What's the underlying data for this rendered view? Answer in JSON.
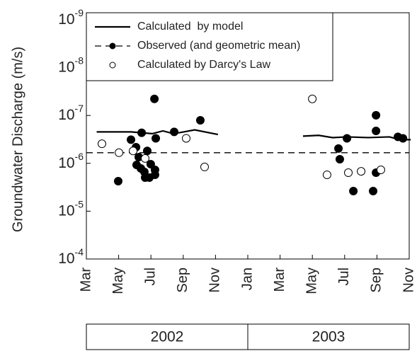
{
  "chart_data": {
    "type": "scatter",
    "y_label": "Groundwater Discharge (m/s)",
    "log_y": true,
    "ylim": [
      0.0001,
      1e-09
    ],
    "yticks": [
      {
        "value": 1e-09,
        "label": "10^-9"
      },
      {
        "value": 1e-08,
        "label": "10^-8"
      },
      {
        "value": 1e-07,
        "label": "10^-7"
      },
      {
        "value": 1e-06,
        "label": "10^-6"
      },
      {
        "value": 1e-05,
        "label": "10^-5"
      },
      {
        "value": 0.0001,
        "label": "10^-4"
      }
    ],
    "xlim": [
      2002.1667,
      2003.8333
    ],
    "xticks": [
      {
        "value": 2002.1667,
        "label": "Mar"
      },
      {
        "value": 2002.3333,
        "label": "May"
      },
      {
        "value": 2002.5,
        "label": "Jul"
      },
      {
        "value": 2002.6667,
        "label": "Sep"
      },
      {
        "value": 2002.8333,
        "label": "Nov"
      },
      {
        "value": 2003.0,
        "label": "Jan"
      },
      {
        "value": 2003.1667,
        "label": "Mar"
      },
      {
        "value": 2003.3333,
        "label": "May"
      },
      {
        "value": 2003.5,
        "label": "Jul"
      },
      {
        "value": 2003.6667,
        "label": "Sep"
      },
      {
        "value": 2003.8333,
        "label": "Nov"
      }
    ],
    "years": [
      {
        "value": 2002,
        "label": "2002"
      },
      {
        "value": 2003,
        "label": "2003"
      }
    ],
    "legend": "upper left",
    "series": [
      {
        "name": "Calculated  by model",
        "kind": "line",
        "color": "#000000",
        "x": [
          2002.22,
          2002.397,
          2002.452,
          2002.507,
          2002.562,
          2002.616,
          2002.671,
          2002.726,
          2002.846,
          2003.0,
          2003.285,
          2003.366,
          2003.438,
          2003.512,
          2003.622,
          2003.731,
          2003.786,
          2003.841
        ],
        "values": [
          2.2e-07,
          2.2e-07,
          2.3e-07,
          2.4e-07,
          2.1e-07,
          2.4e-07,
          2.2e-07,
          2e-07,
          2.5e-07,
          null,
          2.7e-07,
          2.6e-07,
          2.9e-07,
          2.8e-07,
          2.9e-07,
          2.8e-07,
          3.2e-07,
          3.2e-07
        ]
      },
      {
        "name": "Observed (and geometric mean)",
        "kind": "points",
        "filled": true,
        "color": "#000000",
        "mean": 6e-07,
        "x": [
          2002.331,
          2002.397,
          2002.423,
          2002.452,
          2002.437,
          2002.426,
          2002.448,
          2002.466,
          2002.47,
          2002.492,
          2002.481,
          2002.499,
          2002.518,
          2002.525,
          2002.521,
          2002.521,
          2002.62,
          2002.755,
          2003.468,
          2003.475,
          2003.512,
          2003.545,
          2003.647,
          2003.662,
          2003.662,
          2003.662,
          2003.775,
          2003.801
        ],
        "values": [
          2.36e-06,
          3.2e-07,
          4.6e-07,
          2.3e-07,
          7.4e-07,
          1.08e-06,
          1.28e-06,
          1.51e-06,
          1.99e-06,
          1.99e-06,
          5.5e-07,
          1.04e-06,
          4.5e-08,
          3e-07,
          1.37e-06,
          1.74e-06,
          2.2e-07,
          1.26e-07,
          4.9e-07,
          8.2e-07,
          3e-07,
          3.8e-06,
          3.8e-06,
          9.9e-08,
          2.1e-07,
          1.57e-06,
          2.8e-07,
          3e-07
        ]
      },
      {
        "name": "Calculated by Darcy's Law",
        "kind": "points",
        "filled": false,
        "color": "#000000",
        "x": [
          2002.247,
          2002.335,
          2002.408,
          2002.47,
          2002.682,
          2002.777,
          2003.333,
          2003.409,
          2003.519,
          2003.585,
          2003.687
        ],
        "values": [
          3.9e-07,
          6e-07,
          5.5e-07,
          7.9e-07,
          3e-07,
          1.19e-06,
          4.5e-08,
          1.74e-06,
          1.57e-06,
          1.47e-06,
          1.37e-06
        ]
      }
    ]
  }
}
